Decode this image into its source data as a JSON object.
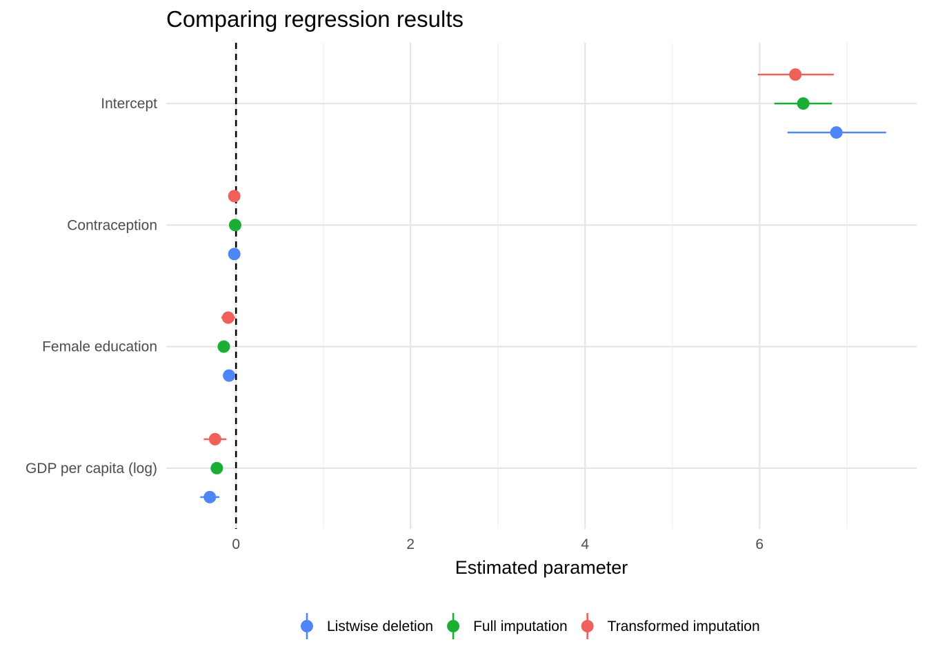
{
  "chart_data": {
    "type": "scatter",
    "subtype": "coefficient-plot",
    "title": "Comparing regression results",
    "xlabel": "Estimated parameter",
    "ylabel": "",
    "xlim": [
      -0.8,
      7.8
    ],
    "x_ticks": [
      0,
      2,
      4,
      6
    ],
    "reference_line": {
      "x": 0,
      "style": "dashed",
      "color": "#000000"
    },
    "categories": [
      "Intercept",
      "Contraception",
      "Female education",
      "GDP per capita (log)"
    ],
    "series": [
      {
        "name": "Listwise deletion",
        "color": "#4f86f7",
        "estimates": [
          6.88,
          -0.02,
          -0.08,
          -0.3
        ],
        "ci_low": [
          6.32,
          -0.04,
          -0.12,
          -0.41
        ],
        "ci_high": [
          7.45,
          0.0,
          -0.04,
          -0.19
        ]
      },
      {
        "name": "Full imputation",
        "color": "#1bae35",
        "estimates": [
          6.5,
          -0.01,
          -0.14,
          -0.22
        ],
        "ci_low": [
          6.17,
          -0.02,
          -0.18,
          -0.28
        ],
        "ci_high": [
          6.83,
          0.0,
          -0.1,
          -0.16
        ]
      },
      {
        "name": "Transformed imputation",
        "color": "#f0605a",
        "estimates": [
          6.41,
          -0.02,
          -0.09,
          -0.24
        ],
        "ci_low": [
          5.98,
          -0.04,
          -0.17,
          -0.37
        ],
        "ci_high": [
          6.85,
          0.0,
          -0.01,
          -0.11
        ]
      }
    ],
    "grid": true,
    "legend_position": "bottom"
  }
}
